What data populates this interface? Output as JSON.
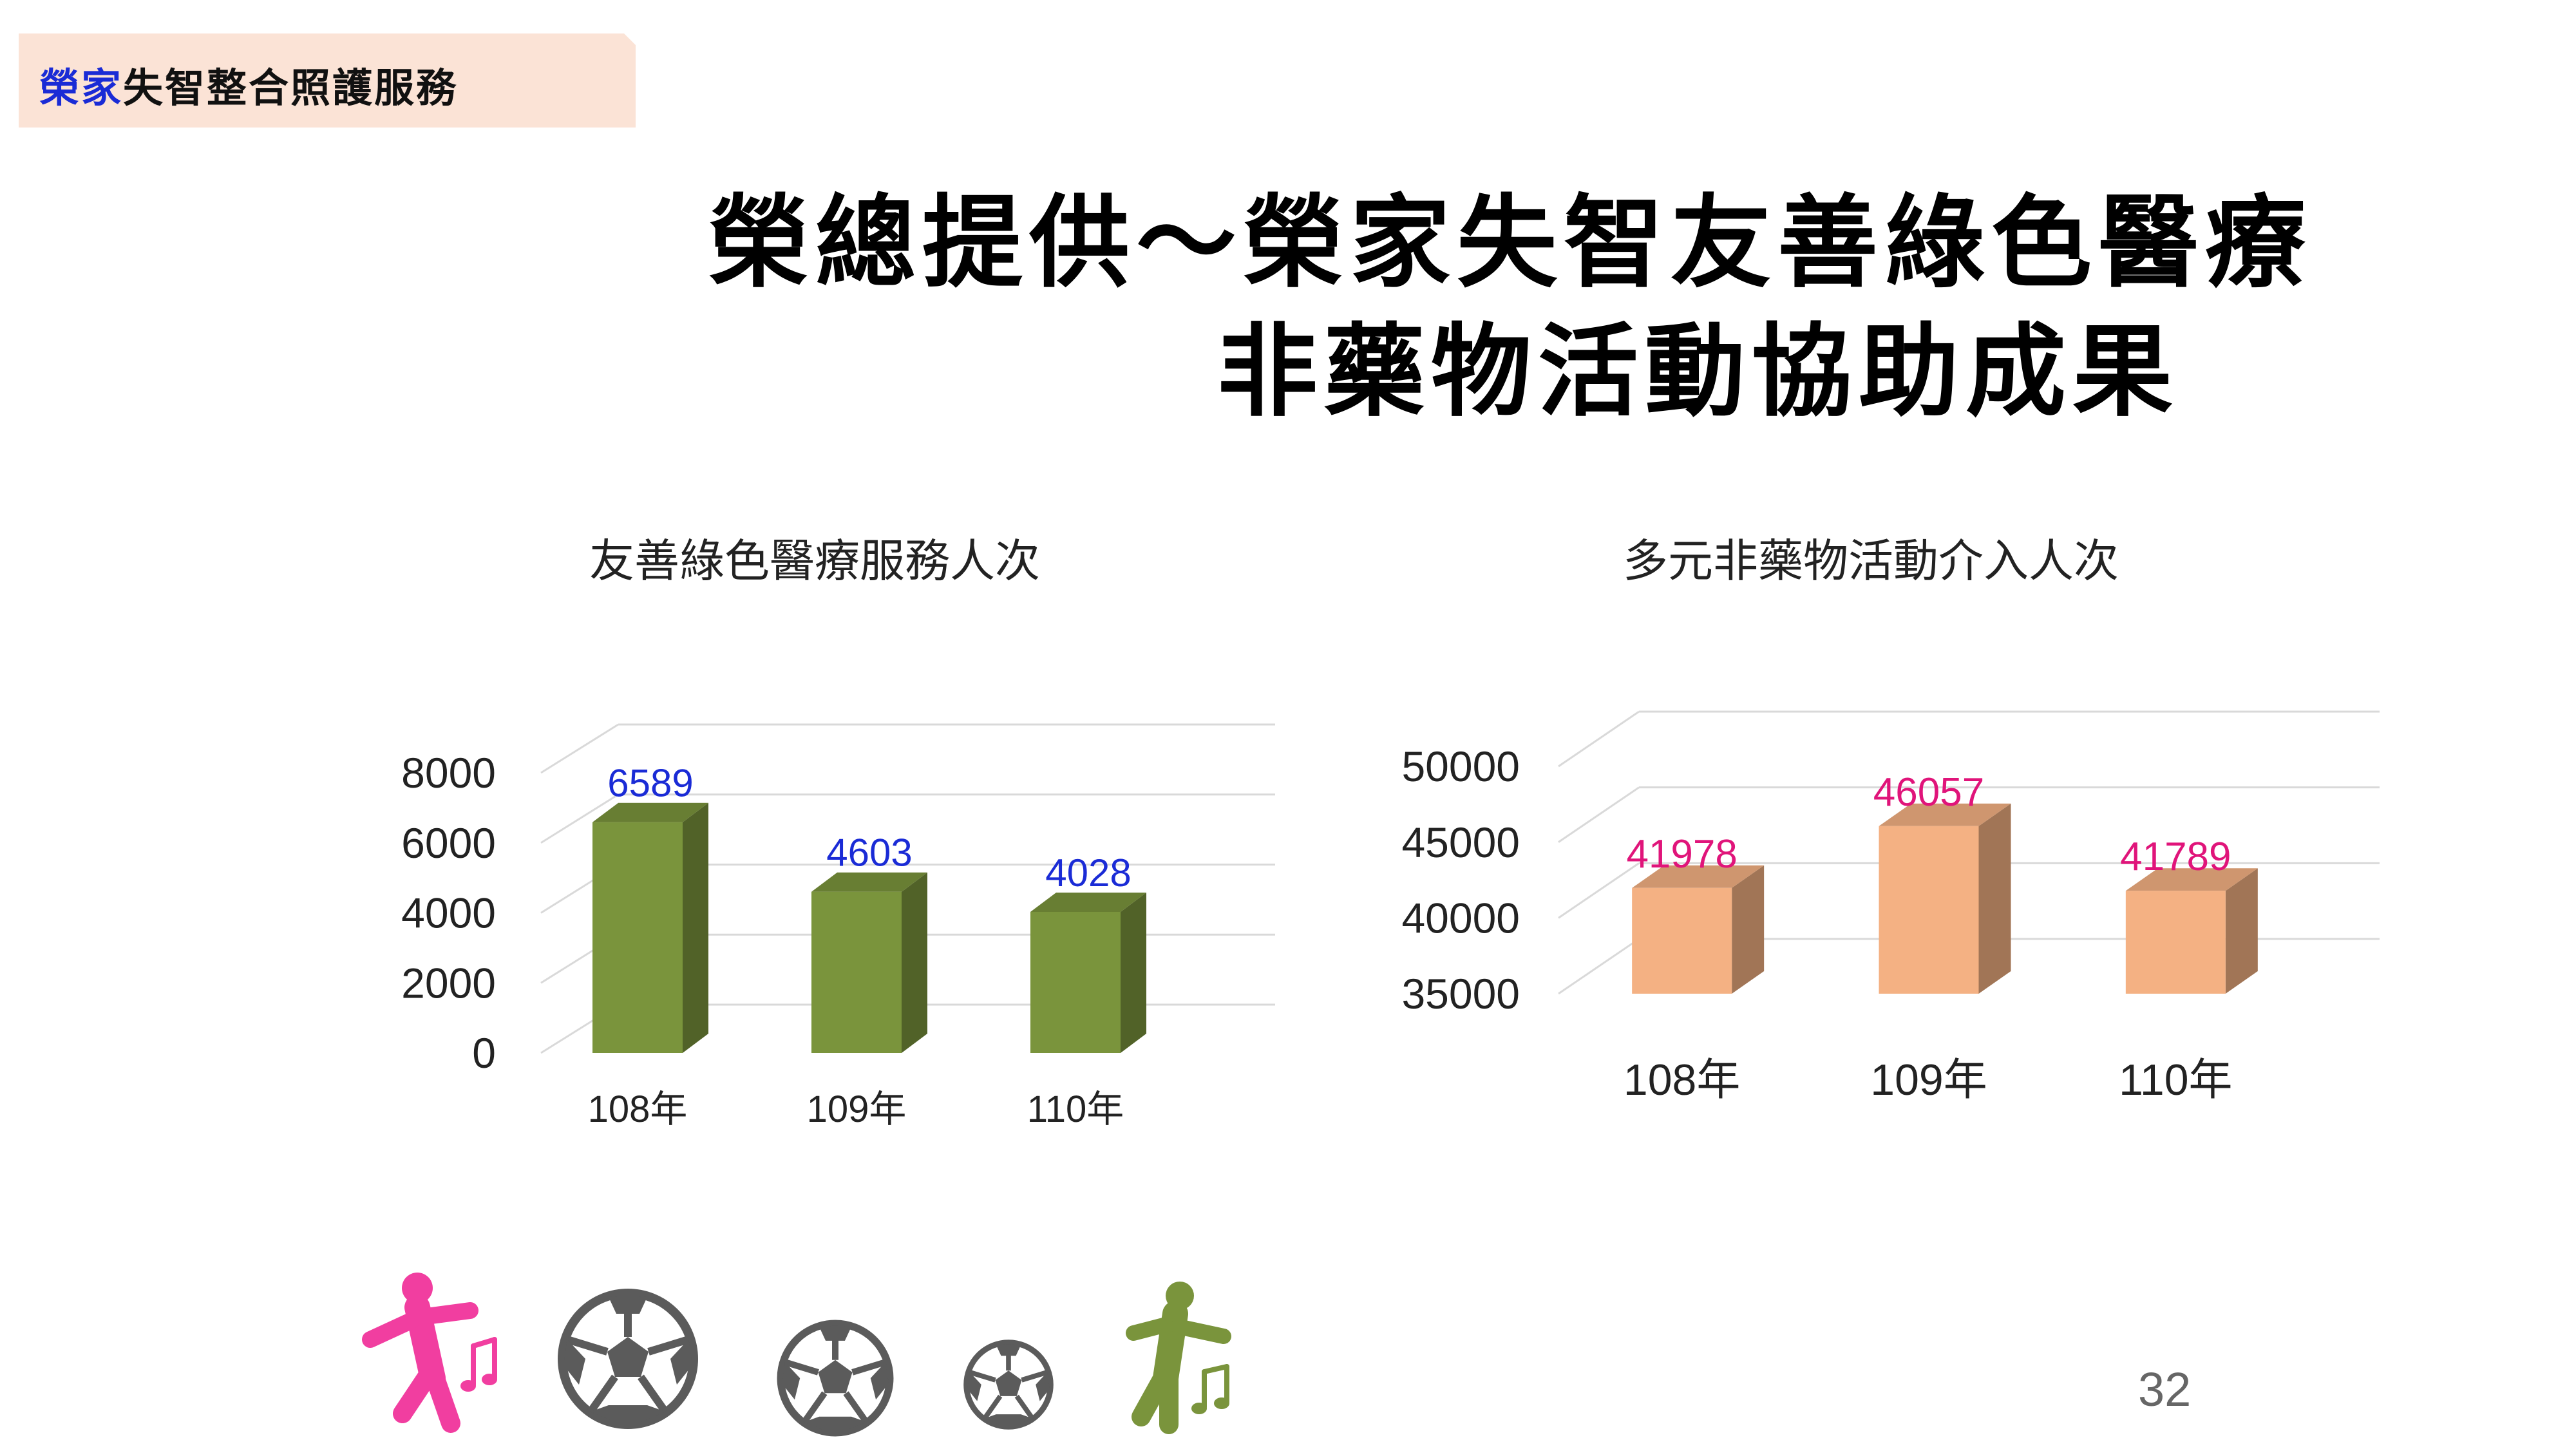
{
  "header": {
    "tag_highlight": "榮家",
    "tag_rest": "失智整合照護服務"
  },
  "title": {
    "line1": "榮總提供～榮家失智友善綠色醫療",
    "line2": "非藥物活動協助成果"
  },
  "charts": {
    "left_title": "友善綠色醫療服務人次",
    "right_title": "多元非藥物活動介入人次"
  },
  "chart_data": [
    {
      "type": "bar",
      "title": "友善綠色醫療服務人次",
      "categories": [
        "108年",
        "109年",
        "110年"
      ],
      "values": [
        6589,
        4603,
        4028
      ],
      "ylim": [
        0,
        8000
      ],
      "yticks": [
        0,
        2000,
        4000,
        6000,
        8000
      ],
      "grid": true,
      "bar_color": "#7a943c",
      "label_color": "#1a2bd6"
    },
    {
      "type": "bar",
      "title": "多元非藥物活動介入人次",
      "categories": [
        "108年",
        "109年",
        "110年"
      ],
      "values": [
        41978,
        46057,
        41789
      ],
      "ylim": [
        35000,
        50000
      ],
      "yticks": [
        35000,
        40000,
        45000,
        50000
      ],
      "grid": true,
      "bar_color": "#f4b183",
      "label_color": "#e0147a"
    }
  ],
  "decor": {
    "icons": [
      "dancing-person-icon",
      "soccer-ball-icon",
      "soccer-ball-icon",
      "soccer-ball-icon",
      "dancing-person-icon"
    ],
    "accent_pink": "#f13ea0",
    "accent_green": "#7a943c"
  },
  "page_number": "32"
}
